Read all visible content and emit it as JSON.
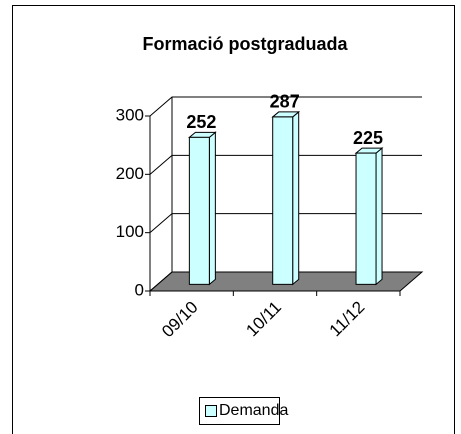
{
  "chart_data": {
    "type": "bar",
    "title": "Formació postgraduada",
    "categories": [
      "09/10",
      "10/11",
      "11/12"
    ],
    "series": [
      {
        "name": "Demanda",
        "color": "#ccffff",
        "values": [
          252,
          287,
          225
        ]
      }
    ],
    "ylim": [
      0,
      300
    ],
    "yticks": [
      0,
      100,
      200,
      300
    ],
    "grid": true,
    "legend": "bottom"
  }
}
